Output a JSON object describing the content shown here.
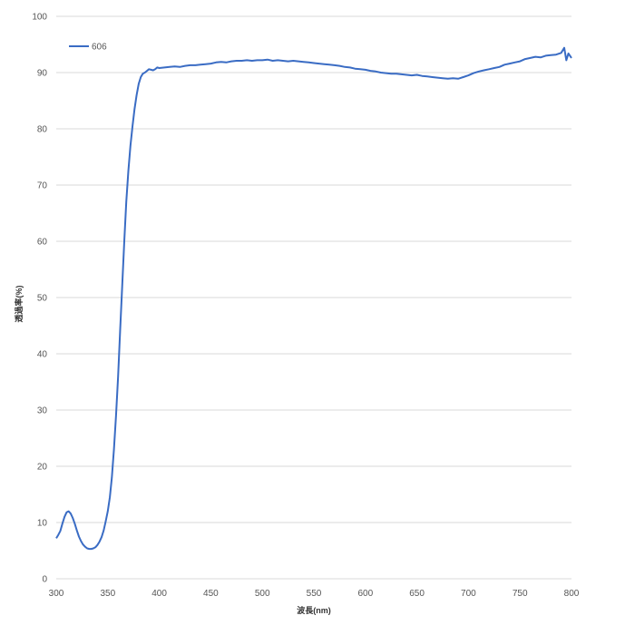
{
  "chart_data": {
    "type": "line",
    "title": "",
    "xlabel": "波長(nm)",
    "ylabel": "透過率(%)",
    "xlim": [
      300,
      800
    ],
    "ylim": [
      0,
      100
    ],
    "xticks": [
      300,
      350,
      400,
      450,
      500,
      550,
      600,
      650,
      700,
      750,
      800
    ],
    "yticks": [
      0,
      10,
      20,
      30,
      40,
      50,
      60,
      70,
      80,
      90,
      100
    ],
    "grid": "horizontal",
    "legend_position": "top-left",
    "series": [
      {
        "name": "606",
        "color": "#3a6cc4",
        "x": [
          300,
          302,
          304,
          306,
          308,
          310,
          312,
          314,
          316,
          318,
          320,
          322,
          324,
          326,
          328,
          330,
          332,
          334,
          336,
          338,
          340,
          342,
          344,
          346,
          348,
          350,
          352,
          354,
          356,
          358,
          360,
          362,
          364,
          366,
          368,
          370,
          372,
          374,
          376,
          378,
          380,
          382,
          384,
          386,
          388,
          390,
          392,
          394,
          396,
          398,
          400,
          405,
          410,
          415,
          420,
          425,
          430,
          435,
          440,
          445,
          450,
          455,
          460,
          465,
          470,
          475,
          480,
          485,
          490,
          495,
          500,
          505,
          510,
          515,
          520,
          525,
          530,
          535,
          540,
          545,
          550,
          555,
          560,
          565,
          570,
          575,
          580,
          585,
          590,
          595,
          600,
          605,
          610,
          615,
          620,
          625,
          630,
          635,
          640,
          645,
          650,
          655,
          660,
          665,
          670,
          675,
          680,
          685,
          690,
          695,
          700,
          705,
          710,
          715,
          720,
          725,
          730,
          735,
          740,
          745,
          750,
          755,
          760,
          765,
          770,
          775,
          780,
          785,
          790,
          793,
          795,
          797,
          800
        ],
        "values": [
          7.2,
          7.8,
          8.5,
          9.8,
          11.0,
          11.8,
          12.0,
          11.6,
          10.8,
          9.8,
          8.6,
          7.5,
          6.7,
          6.1,
          5.7,
          5.4,
          5.3,
          5.3,
          5.4,
          5.6,
          6.0,
          6.6,
          7.4,
          8.6,
          10.2,
          12.0,
          14.5,
          18.0,
          23.0,
          29.0,
          36.0,
          44.0,
          52.0,
          60.0,
          67.0,
          72.5,
          77.0,
          80.5,
          83.5,
          86.0,
          88.0,
          89.2,
          89.8,
          90.0,
          90.3,
          90.6,
          90.5,
          90.4,
          90.6,
          90.9,
          90.8,
          90.9,
          91.0,
          91.1,
          91.0,
          91.2,
          91.3,
          91.3,
          91.4,
          91.5,
          91.6,
          91.8,
          91.9,
          91.8,
          92.0,
          92.1,
          92.1,
          92.2,
          92.1,
          92.2,
          92.2,
          92.3,
          92.1,
          92.2,
          92.1,
          92.0,
          92.1,
          92.0,
          91.9,
          91.8,
          91.7,
          91.6,
          91.5,
          91.4,
          91.3,
          91.2,
          91.0,
          90.9,
          90.7,
          90.6,
          90.5,
          90.3,
          90.2,
          90.0,
          89.9,
          89.8,
          89.8,
          89.7,
          89.6,
          89.5,
          89.6,
          89.4,
          89.3,
          89.2,
          89.1,
          89.0,
          88.9,
          89.0,
          88.9,
          89.2,
          89.5,
          89.9,
          90.2,
          90.4,
          90.6,
          90.8,
          91.0,
          91.4,
          91.6,
          91.8,
          92.0,
          92.4,
          92.6,
          92.8,
          92.7,
          93.0,
          93.1,
          93.2,
          93.5,
          94.4,
          92.2,
          93.4,
          92.6
        ]
      }
    ]
  }
}
